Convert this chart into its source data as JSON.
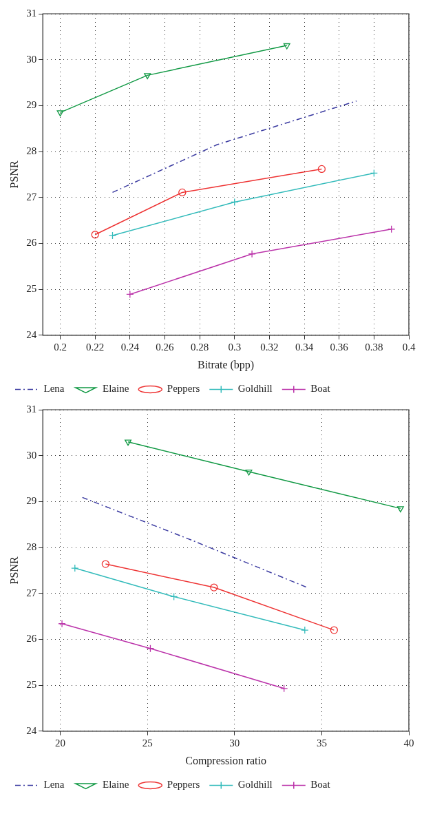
{
  "chart_data": [
    {
      "type": "line",
      "xlabel": "Bitrate (bpp)",
      "ylabel": "PSNR",
      "xlim": [
        0.19,
        0.4
      ],
      "xticks": [
        0.2,
        0.22,
        0.24,
        0.26,
        0.28,
        0.3,
        0.32,
        0.34,
        0.36,
        0.38,
        0.4
      ],
      "ylim": [
        24,
        31
      ],
      "yticks": [
        24,
        25,
        26,
        27,
        28,
        29,
        30,
        31
      ],
      "grid": true,
      "legend": "bottom",
      "series": [
        {
          "name": "Lena",
          "color": "#3a3aa0",
          "marker": "none",
          "line_style": "dashed",
          "x": [
            0.23,
            0.29,
            0.37
          ],
          "values": [
            27.11,
            28.15,
            29.1
          ]
        },
        {
          "name": "Elaine",
          "color": "#119944",
          "marker": "triangle",
          "line_style": "solid",
          "x": [
            0.2,
            0.25,
            0.33
          ],
          "values": [
            28.85,
            29.66,
            30.31
          ]
        },
        {
          "name": "Peppers",
          "color": "#ee3333",
          "marker": "circle",
          "line_style": "solid",
          "x": [
            0.22,
            0.27,
            0.35
          ],
          "values": [
            26.19,
            27.11,
            27.62
          ]
        },
        {
          "name": "Goldhill",
          "color": "#33bbbb",
          "marker": "cross",
          "line_style": "solid",
          "x": [
            0.23,
            0.3,
            0.38
          ],
          "values": [
            26.17,
            26.9,
            27.53
          ]
        },
        {
          "name": "Boat",
          "color": "#bb33aa",
          "marker": "cross",
          "line_style": "solid",
          "x": [
            0.24,
            0.31,
            0.39
          ],
          "values": [
            24.89,
            25.77,
            26.31
          ]
        }
      ]
    },
    {
      "type": "line",
      "xlabel": "Compression ratio",
      "ylabel": "PSNR",
      "xlim": [
        19,
        40
      ],
      "xticks": [
        20,
        25,
        30,
        35,
        40
      ],
      "ylim": [
        24,
        31
      ],
      "yticks": [
        24,
        25,
        26,
        27,
        28,
        29,
        30,
        31
      ],
      "grid": true,
      "legend": "bottom",
      "series": [
        {
          "name": "Lena",
          "color": "#3a3aa0",
          "marker": "none",
          "line_style": "dashed",
          "x": [
            21.27,
            27.6,
            34.16
          ],
          "values": [
            29.09,
            28.15,
            27.13
          ]
        },
        {
          "name": "Elaine",
          "color": "#119944",
          "marker": "triangle",
          "line_style": "solid",
          "x": [
            23.89,
            30.82,
            39.52
          ],
          "values": [
            30.3,
            29.65,
            28.85
          ]
        },
        {
          "name": "Peppers",
          "color": "#ee3333",
          "marker": "circle",
          "line_style": "solid",
          "x": [
            22.6,
            28.82,
            35.71
          ],
          "values": [
            27.64,
            27.13,
            26.2
          ]
        },
        {
          "name": "Goldhill",
          "color": "#33bbbb",
          "marker": "cross",
          "line_style": "solid",
          "x": [
            20.84,
            26.52,
            34.03
          ],
          "values": [
            27.55,
            26.93,
            26.2
          ]
        },
        {
          "name": "Boat",
          "color": "#bb33aa",
          "marker": "cross",
          "line_style": "solid",
          "x": [
            20.1,
            25.17,
            32.84
          ],
          "values": [
            26.34,
            25.8,
            24.93
          ]
        }
      ]
    }
  ]
}
